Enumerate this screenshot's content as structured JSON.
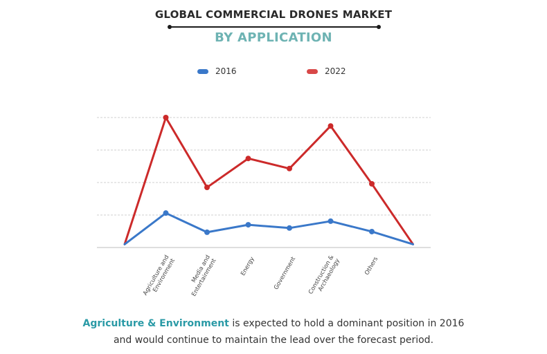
{
  "header": {
    "title": "GLOBAL COMMERCIAL DRONES MARKET",
    "subtitle": "BY APPLICATION"
  },
  "colors": {
    "series_2016": "#3a78c9",
    "series_2022": "#cc2a2a",
    "accent_teal": "#2a9aa6",
    "subtitle_teal": "#6eb3b3",
    "grid": "#c8c8c8"
  },
  "caption": {
    "highlight": "Agriculture & Environment",
    "line1_rest": " is expected to  hold a dominant position in 2016",
    "line2": "and would continue to maintain the lead over the forecast period."
  },
  "chart_data": {
    "type": "line",
    "title": "GLOBAL COMMERCIAL DRONES MARKET",
    "subtitle": "BY APPLICATION",
    "xlabel": "",
    "ylabel": "",
    "categories": [
      "",
      "Agriculture and Environment",
      "Media and Entertainment",
      "Energy",
      "Government",
      "Construction & Archaeology",
      "Others",
      ""
    ],
    "category_label_lines": [
      [],
      [
        "Agriculture and",
        "Environment"
      ],
      [
        "Media and",
        "Entertainment"
      ],
      [
        "Energy"
      ],
      [
        "Government"
      ],
      [
        "Construction &",
        "Archaeology"
      ],
      [
        "Others"
      ],
      []
    ],
    "series": [
      {
        "name": "2016",
        "color": "#3a78c9",
        "values": [
          0.1,
          1.06,
          0.47,
          0.7,
          0.6,
          0.81,
          0.49,
          0.1
        ],
        "markers": [
          false,
          true,
          true,
          true,
          true,
          true,
          true,
          false
        ]
      },
      {
        "name": "2022",
        "color": "#cc2a2a",
        "values": [
          0.1,
          4.0,
          1.85,
          2.74,
          2.43,
          3.74,
          1.96,
          0.1
        ],
        "markers": [
          false,
          true,
          true,
          true,
          true,
          true,
          true,
          false
        ]
      }
    ],
    "ylim": [
      0,
      4
    ],
    "yticks": [
      0,
      1,
      2,
      3,
      4
    ],
    "y_tick_labels_visible": false,
    "grid": true,
    "grid_style": "dashed-horizontal",
    "legend": {
      "placement": "top-center",
      "entries": [
        "2016",
        "2022"
      ]
    }
  }
}
